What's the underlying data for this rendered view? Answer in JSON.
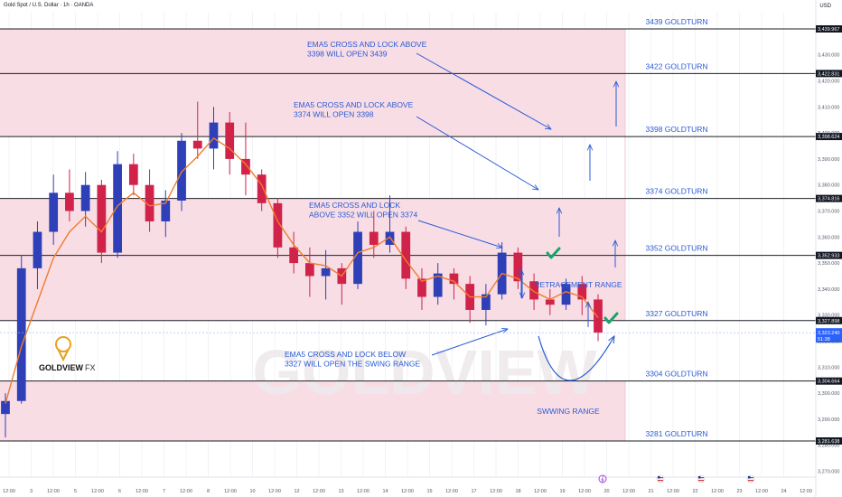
{
  "header": {
    "symbol_title": "Gold Spot / U.S. Dollar · 1h · OANDA",
    "currency": "USD"
  },
  "colors": {
    "zone_fill": "#f8dde5",
    "zone_edge": "#f3c6d2",
    "level_line": "#1b1d24",
    "annotation_blue": "#2a5ad6",
    "ema": "#f07c2c",
    "candle_up": "#2f3fb8",
    "candle_down": "#d1224a",
    "check_green": "#19a36b",
    "last_price_bg": "#2962ff"
  },
  "chart_data": {
    "type": "candlestick",
    "x_tick_labels": [
      "12:00",
      "3",
      "12:00",
      "5",
      "12:00",
      "6",
      "12:00",
      "7",
      "12:00",
      "8",
      "12:00",
      "10",
      "12:00",
      "12",
      "12:00",
      "13",
      "12:00",
      "14",
      "12:00",
      "15",
      "12:00",
      "17",
      "12:00",
      "18",
      "12:00",
      "19",
      "12:00",
      "20",
      "12:00",
      "21",
      "12:00",
      "22",
      "12:00",
      "23",
      "12:00",
      "24",
      "12:00"
    ],
    "y_tick_labels": [
      3270,
      3280,
      3290,
      3300,
      3310,
      3320,
      3330,
      3340,
      3350,
      3360,
      3370,
      3380,
      3390,
      3400,
      3410,
      3420,
      3430
    ],
    "ylim": [
      3263.5,
      3443.5
    ],
    "price_tags": [
      {
        "label": "3,439.967",
        "value": 3439.967
      },
      {
        "label": "3,422.831",
        "value": 3422.831
      },
      {
        "label": "3,398.624",
        "value": 3398.624
      },
      {
        "label": "3,374.816",
        "value": 3374.816
      },
      {
        "label": "3,352.933",
        "value": 3352.933
      },
      {
        "label": "3,327.898",
        "value": 3327.898
      },
      {
        "label": "3,304.664",
        "value": 3304.664
      },
      {
        "label": "3,281.638",
        "value": 3281.638
      }
    ],
    "last_price": {
      "value": "3,323.240",
      "countdown": "51:38",
      "price": 3323.24
    },
    "levels": [
      {
        "label": "3439 GOLDTURN",
        "value": 3439.967
      },
      {
        "label": "3422 GOLDTURN",
        "value": 3422.831
      },
      {
        "label": "3398 GOLDTURN",
        "value": 3398.624
      },
      {
        "label": "3374 GOLDTURN",
        "value": 3374.816
      },
      {
        "label": "3352 GOLDTURN",
        "value": 3352.933
      },
      {
        "label": "3327 GOLDTURN",
        "value": 3327.898
      },
      {
        "label": "3304 GOLDTURN",
        "value": 3304.664
      },
      {
        "label": "3281 GOLDTURN",
        "value": 3281.638
      }
    ],
    "zones": [
      [
        3398.624,
        3439.967
      ],
      [
        3352.933,
        3374.816
      ],
      [
        3327.898,
        3352.933
      ],
      [
        3281.638,
        3304.664
      ]
    ],
    "candles": [
      {
        "time": "2 12:00",
        "open": 3292,
        "high": 3300,
        "low": 3283,
        "close": 3297
      },
      {
        "time": "3 04:00",
        "open": 3297,
        "high": 3353,
        "low": 3296,
        "close": 3348
      },
      {
        "time": "3 12:00",
        "open": 3348,
        "high": 3366,
        "low": 3340,
        "close": 3362
      },
      {
        "time": "4 00:00",
        "open": 3362,
        "high": 3384,
        "low": 3357,
        "close": 3377
      },
      {
        "time": "4 12:00",
        "open": 3377,
        "high": 3386,
        "low": 3366,
        "close": 3370
      },
      {
        "time": "5 00:00",
        "open": 3370,
        "high": 3385,
        "low": 3364,
        "close": 3380
      },
      {
        "time": "5 12:00",
        "open": 3380,
        "high": 3382,
        "low": 3350,
        "close": 3354
      },
      {
        "time": "6 00:00",
        "open": 3354,
        "high": 3393,
        "low": 3352,
        "close": 3388
      },
      {
        "time": "6 12:00",
        "open": 3388,
        "high": 3392,
        "low": 3376,
        "close": 3380
      },
      {
        "time": "7 00:00",
        "open": 3380,
        "high": 3386,
        "low": 3362,
        "close": 3366
      },
      {
        "time": "7 12:00",
        "open": 3366,
        "high": 3378,
        "low": 3360,
        "close": 3374
      },
      {
        "time": "8 00:00",
        "open": 3374,
        "high": 3400,
        "low": 3370,
        "close": 3397
      },
      {
        "time": "8 06:00",
        "open": 3397,
        "high": 3412,
        "low": 3390,
        "close": 3394
      },
      {
        "time": "8 12:00",
        "open": 3394,
        "high": 3410,
        "low": 3386,
        "close": 3404
      },
      {
        "time": "9 00:00",
        "open": 3404,
        "high": 3408,
        "low": 3384,
        "close": 3390
      },
      {
        "time": "10 00:00",
        "open": 3390,
        "high": 3404,
        "low": 3376,
        "close": 3384
      },
      {
        "time": "10 12:00",
        "open": 3384,
        "high": 3386,
        "low": 3370,
        "close": 3373
      },
      {
        "time": "11 00:00",
        "open": 3373,
        "high": 3375,
        "low": 3352,
        "close": 3356
      },
      {
        "time": "11 12:00",
        "open": 3356,
        "high": 3362,
        "low": 3346,
        "close": 3350
      },
      {
        "time": "12 00:00",
        "open": 3350,
        "high": 3356,
        "low": 3337,
        "close": 3345
      },
      {
        "time": "12 12:00",
        "open": 3345,
        "high": 3355,
        "low": 3336,
        "close": 3348
      },
      {
        "time": "13 00:00",
        "open": 3348,
        "high": 3350,
        "low": 3334,
        "close": 3342
      },
      {
        "time": "13 12:00",
        "open": 3342,
        "high": 3366,
        "low": 3340,
        "close": 3362
      },
      {
        "time": "14 00:00",
        "open": 3362,
        "high": 3370,
        "low": 3352,
        "close": 3357
      },
      {
        "time": "14 12:00",
        "open": 3357,
        "high": 3376,
        "low": 3354,
        "close": 3362
      },
      {
        "time": "15 00:00",
        "open": 3362,
        "high": 3364,
        "low": 3340,
        "close": 3344
      },
      {
        "time": "15 12:00",
        "open": 3344,
        "high": 3348,
        "low": 3332,
        "close": 3337
      },
      {
        "time": "16 00:00",
        "open": 3337,
        "high": 3350,
        "low": 3334,
        "close": 3346
      },
      {
        "time": "16 12:00",
        "open": 3346,
        "high": 3348,
        "low": 3336,
        "close": 3342
      },
      {
        "time": "17 00:00",
        "open": 3342,
        "high": 3345,
        "low": 3327,
        "close": 3332
      },
      {
        "time": "17 06:00",
        "open": 3332,
        "high": 3342,
        "low": 3326,
        "close": 3338
      },
      {
        "time": "17 12:00",
        "open": 3338,
        "high": 3358,
        "low": 3336,
        "close": 3354
      },
      {
        "time": "18 00:00",
        "open": 3354,
        "high": 3356,
        "low": 3340,
        "close": 3343
      },
      {
        "time": "18 12:00",
        "open": 3343,
        "high": 3346,
        "low": 3332,
        "close": 3336
      },
      {
        "time": "19 00:00",
        "open": 3336,
        "high": 3340,
        "low": 3330,
        "close": 3334
      },
      {
        "time": "19 12:00",
        "open": 3334,
        "high": 3344,
        "low": 3332,
        "close": 3342
      },
      {
        "time": "20 00:00",
        "open": 3342,
        "high": 3345,
        "low": 3330,
        "close": 3336
      },
      {
        "time": "20 06:00",
        "open": 3336,
        "high": 3338,
        "low": 3320,
        "close": 3323.24
      }
    ],
    "ema": [
      3296,
      3318,
      3335,
      3352,
      3362,
      3368,
      3362,
      3372,
      3377,
      3372,
      3373,
      3385,
      3391,
      3398,
      3394,
      3388,
      3380,
      3366,
      3357,
      3350,
      3349,
      3345,
      3354,
      3356,
      3360,
      3351,
      3343,
      3345,
      3343,
      3337,
      3337,
      3346,
      3344,
      3339,
      3336,
      3339,
      3337,
      3329
    ],
    "annotations": [
      {
        "text": "EMA5 CROSS AND LOCK ABOVE\n3398 WILL OPEN 3439"
      },
      {
        "text": "EMA5 CROSS AND LOCK ABOVE\n3374 WILL OPEN 3398"
      },
      {
        "text": "EMA5 CROSS AND LOCK\nABOVE 3352 WILL OPEN 3374"
      },
      {
        "text": "RETRACEMENT RANGE"
      },
      {
        "text": "EMA5 CROSS AND LOCK BELOW\n3327 WILL OPEN THE SWING RANGE"
      },
      {
        "text": "SWWING RANGE"
      }
    ]
  },
  "logo": {
    "name": "GOLDVIEW",
    "suffix": "FX"
  },
  "watermark": "GOLDVIEW"
}
